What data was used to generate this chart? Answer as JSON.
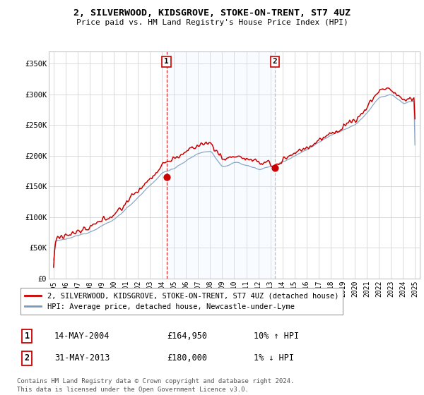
{
  "title": "2, SILVERWOOD, KIDSGROVE, STOKE-ON-TRENT, ST7 4UZ",
  "subtitle": "Price paid vs. HM Land Registry's House Price Index (HPI)",
  "ylim": [
    0,
    370000
  ],
  "yticks": [
    0,
    50000,
    100000,
    150000,
    200000,
    250000,
    300000,
    350000
  ],
  "ytick_labels": [
    "£0",
    "£50K",
    "£100K",
    "£150K",
    "£200K",
    "£250K",
    "£300K",
    "£350K"
  ],
  "x_start_year": 1995,
  "x_end_year": 2025,
  "line1_color": "#cc0000",
  "line2_color": "#7799bb",
  "fill_color": "#ddeeff",
  "vline1_color": "#cc0000",
  "vline2_color": "#aaaaaa",
  "marker1_x": 2004.37,
  "marker1_price": 164950,
  "marker2_x": 2013.37,
  "marker2_price": 180000,
  "legend_line1": "2, SILVERWOOD, KIDSGROVE, STOKE-ON-TRENT, ST7 4UZ (detached house)",
  "legend_line2": "HPI: Average price, detached house, Newcastle-under-Lyme",
  "table_row1": [
    "1",
    "14-MAY-2004",
    "£164,950",
    "10% ↑ HPI"
  ],
  "table_row2": [
    "2",
    "31-MAY-2013",
    "£180,000",
    "1% ↓ HPI"
  ],
  "footer": "Contains HM Land Registry data © Crown copyright and database right 2024.\nThis data is licensed under the Open Government Licence v3.0.",
  "background_color": "#ffffff",
  "grid_color": "#cccccc"
}
